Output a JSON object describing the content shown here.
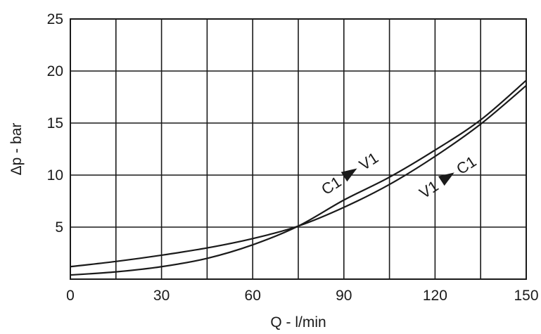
{
  "chart_data": {
    "type": "line",
    "xlabel": "Q - l/min",
    "ylabel": "Δp - bar",
    "xlim": [
      0,
      150
    ],
    "ylim": [
      0,
      25
    ],
    "x_ticks": [
      0,
      30,
      60,
      90,
      120,
      150
    ],
    "x_tick_labels": [
      "0",
      "30",
      "60",
      "90",
      "120",
      "150"
    ],
    "y_ticks": [
      5,
      10,
      15,
      20,
      25
    ],
    "y_tick_labels": [
      "5",
      "10",
      "15",
      "20",
      "25"
    ],
    "grid": true,
    "x_grid_step": 15,
    "y_grid_step": 5,
    "series": [
      {
        "x": [
          0,
          15,
          30,
          45,
          60,
          75,
          90,
          105,
          120,
          135,
          150
        ],
        "values": [
          1.2,
          1.7,
          2.3,
          3.0,
          3.9,
          5.1,
          6.9,
          9.1,
          11.8,
          14.9,
          18.6
        ]
      },
      {
        "x": [
          0,
          15,
          30,
          45,
          60,
          75,
          90,
          105,
          120,
          135,
          150
        ],
        "values": [
          0.4,
          0.7,
          1.2,
          2.0,
          3.3,
          5.1,
          7.6,
          9.8,
          12.4,
          15.3,
          19.1
        ]
      }
    ],
    "annotations": [
      {
        "from": "C1",
        "to": "V1",
        "x": 92,
        "y": 10.2
      },
      {
        "from": "V1",
        "to": "C1",
        "x": 124,
        "y": 9.8
      }
    ]
  }
}
